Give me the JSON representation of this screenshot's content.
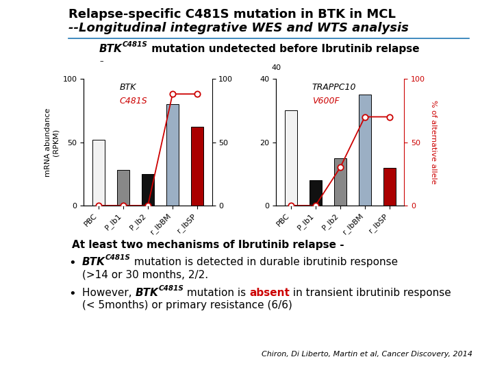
{
  "title": "Relapse-specific C481S mutation in BTK in MCL",
  "subtitle": "--Longitudinal integrative WES and WTS analysis",
  "annotations": [
    [
      "BTK",
      "C481S",
      " mutation undetected before Ibrutinib relapse"
    ],
    [
      "–"
    ],
    [
      "At least two mechanisms of Ibrutinib relapse -"
    ],
    [
      "•",
      "BTK",
      "C481S",
      " mutation is detected in durable ibrutinib response"
    ],
    [
      "(>14 or 30 months, 2/2."
    ],
    [
      "•",
      "However, ",
      "BTK",
      "C481S",
      " mutation is ",
      "absent",
      " in transient ibrutinib response"
    ],
    [
      "(< 5months) or primary resistance (6/6)"
    ],
    [
      "Chiron, Di Liberto, Martin et al, Cancer Discovery, 2014"
    ]
  ],
  "chart_data": [
    {
      "type": "bar",
      "categories": [
        "PBC",
        "P_Ib1",
        "P_Ib2",
        "r_IbBM",
        "r_IbSP"
      ],
      "ylim": [
        0,
        100
      ],
      "yticks": [
        0,
        50,
        100
      ],
      "ylabel": "mRNA abundance\n(RPKM)",
      "y2lim": [
        0,
        100
      ],
      "y2ticks": [
        0,
        50,
        100
      ],
      "series": [
        {
          "name": "BTK",
          "type": "bar",
          "colors": [
            "#f2f2f2",
            "#888888",
            "#111111",
            "#9bafc4",
            "#aa0000"
          ],
          "values": [
            52,
            28,
            25,
            80,
            62
          ]
        },
        {
          "name": "C481S",
          "type": "line",
          "axis": "y2",
          "color": "#cc0000",
          "marker": "o",
          "values": [
            0,
            0,
            0,
            88,
            88
          ]
        }
      ]
    },
    {
      "type": "bar",
      "categories": [
        "PBC",
        "P_Ib1",
        "P_Ib2",
        "r_IbBM",
        "r_IbSP"
      ],
      "ylim": [
        0,
        40
      ],
      "yticks": [
        0,
        20,
        40
      ],
      "y2lim": [
        0,
        100
      ],
      "y2ticks": [
        0,
        50,
        100
      ],
      "y2label": "% of alternative allele",
      "annotations": [
        "40"
      ],
      "series": [
        {
          "name": "TRAPPC10",
          "type": "bar",
          "colors": [
            "#f2f2f2",
            "#111111",
            "#888888",
            "#9bafc4",
            "#aa0000"
          ],
          "values": [
            30,
            8,
            15,
            35,
            12
          ]
        },
        {
          "name": "V600F",
          "type": "line",
          "axis": "y2",
          "color": "#cc0000",
          "marker": "o",
          "values": [
            0,
            0,
            30,
            70,
            70
          ]
        }
      ]
    }
  ]
}
